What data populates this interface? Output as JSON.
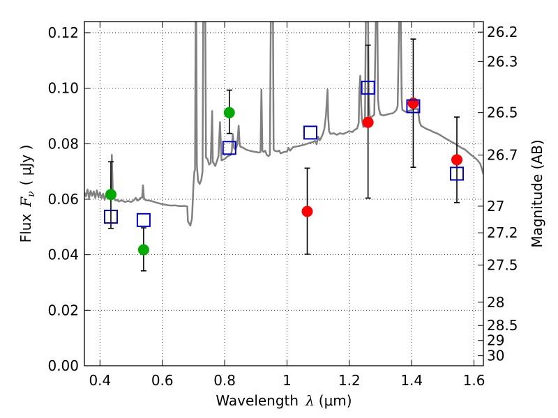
{
  "chart_data": {
    "type": "scatter",
    "title": "",
    "xlabel_prefix": "Wavelength",
    "xlabel_symbol": "λ",
    "xlabel_unit": "(μm)",
    "ylabel_prefix": "Flux",
    "ylabel_symbol": "F",
    "ylabel_subscript": "ν",
    "ylabel_unit": "( μJy )",
    "y2label": "Magnitude (AB)",
    "xlim": [
      0.35,
      1.63
    ],
    "ylim": [
      0.0,
      0.124
    ],
    "grid": true,
    "x_ticks": [
      {
        "value": 0.4,
        "label": "0.4"
      },
      {
        "value": 0.6,
        "label": "0.6"
      },
      {
        "value": 0.8,
        "label": "0.8"
      },
      {
        "value": 1.0,
        "label": "1"
      },
      {
        "value": 1.2,
        "label": "1.2"
      },
      {
        "value": 1.4,
        "label": "1.4"
      },
      {
        "value": 1.6,
        "label": "1.6"
      }
    ],
    "y_ticks": [
      {
        "value": 0.0,
        "label": "0.00"
      },
      {
        "value": 0.02,
        "label": "0.02"
      },
      {
        "value": 0.04,
        "label": "0.04"
      },
      {
        "value": 0.06,
        "label": "0.06"
      },
      {
        "value": 0.08,
        "label": "0.08"
      },
      {
        "value": 0.1,
        "label": "0.10"
      },
      {
        "value": 0.12,
        "label": "0.12"
      }
    ],
    "y2_ticks": [
      {
        "flux": 0.1202,
        "label": "26.2"
      },
      {
        "flux": 0.1096,
        "label": "26.3"
      },
      {
        "flux": 0.0912,
        "label": "26.5"
      },
      {
        "flux": 0.0759,
        "label": "26.7"
      },
      {
        "flux": 0.0575,
        "label": "27"
      },
      {
        "flux": 0.0479,
        "label": "27.2"
      },
      {
        "flux": 0.0363,
        "label": "27.5"
      },
      {
        "flux": 0.0229,
        "label": "28"
      },
      {
        "flux": 0.0145,
        "label": "28.5"
      },
      {
        "flux": 0.0091,
        "label": "29"
      },
      {
        "flux": 0.0036,
        "label": "30"
      }
    ],
    "series": [
      {
        "name": "model spectrum",
        "kind": "line",
        "color": "#808080",
        "points": [
          [
            0.35,
            0.0625
          ],
          [
            0.355,
            0.061
          ],
          [
            0.36,
            0.0635
          ],
          [
            0.365,
            0.0605
          ],
          [
            0.37,
            0.063
          ],
          [
            0.375,
            0.0612
          ],
          [
            0.38,
            0.0628
          ],
          [
            0.385,
            0.0605
          ],
          [
            0.39,
            0.0632
          ],
          [
            0.395,
            0.0608
          ],
          [
            0.4,
            0.0625
          ],
          [
            0.405,
            0.0603
          ],
          [
            0.41,
            0.062
          ],
          [
            0.415,
            0.0598
          ],
          [
            0.42,
            0.0618
          ],
          [
            0.425,
            0.0605
          ],
          [
            0.43,
            0.061
          ],
          [
            0.435,
            0.062
          ],
          [
            0.438,
            0.076
          ],
          [
            0.441,
            0.063
          ],
          [
            0.445,
            0.0605
          ],
          [
            0.45,
            0.0595
          ],
          [
            0.455,
            0.0598
          ],
          [
            0.46,
            0.0592
          ],
          [
            0.47,
            0.0596
          ],
          [
            0.48,
            0.059
          ],
          [
            0.49,
            0.0594
          ],
          [
            0.5,
            0.059
          ],
          [
            0.51,
            0.0598
          ],
          [
            0.515,
            0.0605
          ],
          [
            0.52,
            0.0595
          ],
          [
            0.525,
            0.0598
          ],
          [
            0.53,
            0.0605
          ],
          [
            0.535,
            0.0605
          ],
          [
            0.538,
            0.065
          ],
          [
            0.541,
            0.0605
          ],
          [
            0.545,
            0.0598
          ],
          [
            0.55,
            0.0596
          ],
          [
            0.56,
            0.0595
          ],
          [
            0.57,
            0.0592
          ],
          [
            0.58,
            0.0588
          ],
          [
            0.59,
            0.0585
          ],
          [
            0.6,
            0.0582
          ],
          [
            0.61,
            0.058
          ],
          [
            0.62,
            0.0578
          ],
          [
            0.63,
            0.0577
          ],
          [
            0.64,
            0.0578
          ],
          [
            0.65,
            0.0576
          ],
          [
            0.66,
            0.0575
          ],
          [
            0.67,
            0.0576
          ],
          [
            0.68,
            0.0574
          ],
          [
            0.682,
            0.052
          ],
          [
            0.69,
            0.0505
          ],
          [
            0.695,
            0.053
          ],
          [
            0.698,
            0.06
          ],
          [
            0.7,
            0.0655
          ],
          [
            0.703,
            0.07
          ],
          [
            0.705,
            0.0705
          ],
          [
            0.707,
            0.124
          ],
          [
            0.709,
            0.124
          ],
          [
            0.711,
            0.072
          ],
          [
            0.715,
            0.0665
          ],
          [
            0.72,
            0.0655
          ],
          [
            0.725,
            0.067
          ],
          [
            0.729,
            0.07
          ],
          [
            0.731,
            0.124
          ],
          [
            0.738,
            0.124
          ],
          [
            0.74,
            0.075
          ],
          [
            0.745,
            0.0745
          ],
          [
            0.75,
            0.0725
          ],
          [
            0.755,
            0.073
          ],
          [
            0.76,
            0.0918
          ],
          [
            0.762,
            0.0735
          ],
          [
            0.77,
            0.072
          ],
          [
            0.78,
            0.0755
          ],
          [
            0.785,
            0.0878
          ],
          [
            0.79,
            0.074
          ],
          [
            0.8,
            0.0745
          ],
          [
            0.81,
            0.0755
          ],
          [
            0.82,
            0.076
          ],
          [
            0.823,
            0.0775
          ],
          [
            0.826,
            0.0835
          ],
          [
            0.83,
            0.0785
          ],
          [
            0.835,
            0.078
          ],
          [
            0.84,
            0.0795
          ],
          [
            0.845,
            0.0865
          ],
          [
            0.848,
            0.08
          ],
          [
            0.85,
            0.079
          ],
          [
            0.86,
            0.0785
          ],
          [
            0.87,
            0.0778
          ],
          [
            0.88,
            0.0775
          ],
          [
            0.89,
            0.0772
          ],
          [
            0.9,
            0.077
          ],
          [
            0.91,
            0.0768
          ],
          [
            0.915,
            0.077
          ],
          [
            0.918,
            0.0995
          ],
          [
            0.921,
            0.0775
          ],
          [
            0.925,
            0.077
          ],
          [
            0.93,
            0.0775
          ],
          [
            0.935,
            0.076
          ],
          [
            0.94,
            0.0755
          ],
          [
            0.945,
            0.076
          ],
          [
            0.948,
            0.124
          ],
          [
            0.955,
            0.124
          ],
          [
            0.957,
            0.078
          ],
          [
            0.96,
            0.0775
          ],
          [
            0.97,
            0.0772
          ],
          [
            0.975,
            0.0775
          ],
          [
            0.98,
            0.0765
          ],
          [
            0.99,
            0.077
          ],
          [
            1.0,
            0.0772
          ],
          [
            1.005,
            0.0785
          ],
          [
            1.01,
            0.0775
          ],
          [
            1.02,
            0.0788
          ],
          [
            1.03,
            0.079
          ],
          [
            1.04,
            0.0792
          ],
          [
            1.05,
            0.0795
          ],
          [
            1.06,
            0.0798
          ],
          [
            1.07,
            0.0802
          ],
          [
            1.08,
            0.0805
          ],
          [
            1.09,
            0.081
          ],
          [
            1.095,
            0.0798
          ],
          [
            1.1,
            0.0825
          ],
          [
            1.105,
            0.0812
          ],
          [
            1.11,
            0.0822
          ],
          [
            1.115,
            0.0835
          ],
          [
            1.12,
            0.0855
          ],
          [
            1.125,
            0.0902
          ],
          [
            1.13,
            0.0995
          ],
          [
            1.132,
            0.09
          ],
          [
            1.135,
            0.0845
          ],
          [
            1.14,
            0.0835
          ],
          [
            1.15,
            0.0838
          ],
          [
            1.16,
            0.0832
          ],
          [
            1.17,
            0.0838
          ],
          [
            1.18,
            0.0835
          ],
          [
            1.19,
            0.084
          ],
          [
            1.2,
            0.0845
          ],
          [
            1.21,
            0.0842
          ],
          [
            1.215,
            0.0848
          ],
          [
            1.22,
            0.0852
          ],
          [
            1.225,
            0.0855
          ],
          [
            1.23,
            0.0875
          ],
          [
            1.232,
            0.098
          ],
          [
            1.235,
            0.1045
          ],
          [
            1.238,
            0.0945
          ],
          [
            1.24,
            0.089
          ],
          [
            1.245,
            0.086
          ],
          [
            1.25,
            0.0865
          ],
          [
            1.253,
            0.124
          ],
          [
            1.26,
            0.124
          ],
          [
            1.262,
            0.098
          ],
          [
            1.265,
            0.09
          ],
          [
            1.27,
            0.0895
          ],
          [
            1.28,
            0.0905
          ],
          [
            1.285,
            0.124
          ],
          [
            1.29,
            0.124
          ],
          [
            1.292,
            0.096
          ],
          [
            1.295,
            0.0925
          ],
          [
            1.3,
            0.0905
          ],
          [
            1.31,
            0.0902
          ],
          [
            1.32,
            0.0905
          ],
          [
            1.33,
            0.0908
          ],
          [
            1.34,
            0.091
          ],
          [
            1.35,
            0.092
          ],
          [
            1.355,
            0.0935
          ],
          [
            1.36,
            0.124
          ],
          [
            1.365,
            0.124
          ],
          [
            1.368,
            0.096
          ],
          [
            1.37,
            0.0922
          ],
          [
            1.38,
            0.0915
          ],
          [
            1.39,
            0.0918
          ],
          [
            1.4,
            0.0922
          ],
          [
            1.41,
            0.0925
          ],
          [
            1.42,
            0.0925
          ],
          [
            1.425,
            0.088
          ],
          [
            1.43,
            0.0865
          ],
          [
            1.44,
            0.0858
          ],
          [
            1.45,
            0.0852
          ],
          [
            1.46,
            0.0848
          ],
          [
            1.47,
            0.0842
          ],
          [
            1.48,
            0.0838
          ],
          [
            1.49,
            0.0832
          ],
          [
            1.5,
            0.0825
          ],
          [
            1.51,
            0.0818
          ],
          [
            1.52,
            0.0812
          ],
          [
            1.53,
            0.0805
          ],
          [
            1.54,
            0.08
          ],
          [
            1.55,
            0.0792
          ],
          [
            1.56,
            0.0785
          ],
          [
            1.57,
            0.078
          ],
          [
            1.58,
            0.077
          ],
          [
            1.59,
            0.076
          ],
          [
            1.6,
            0.0752
          ],
          [
            1.61,
            0.0742
          ],
          [
            1.62,
            0.0728
          ],
          [
            1.625,
            0.071
          ],
          [
            1.63,
            0.069
          ]
        ]
      },
      {
        "name": "observed (green)",
        "kind": "errorbar",
        "color": "#00aa00",
        "points": [
          {
            "x": 0.435,
            "y": 0.0617,
            "yerr_low": 0.0495,
            "yerr_high": 0.0735
          },
          {
            "x": 0.54,
            "y": 0.0418,
            "yerr_low": 0.0342,
            "yerr_high": 0.0497
          },
          {
            "x": 0.815,
            "y": 0.0912,
            "yerr_low": 0.0837,
            "yerr_high": 0.0993
          }
        ]
      },
      {
        "name": "observed (red)",
        "kind": "errorbar",
        "color": "#ff0000",
        "points": [
          {
            "x": 1.065,
            "y": 0.0556,
            "yerr_low": 0.0402,
            "yerr_high": 0.0712
          },
          {
            "x": 1.26,
            "y": 0.0877,
            "yerr_low": 0.0604,
            "yerr_high": 0.1155
          },
          {
            "x": 1.405,
            "y": 0.0946,
            "yerr_low": 0.0715,
            "yerr_high": 0.1177
          },
          {
            "x": 1.545,
            "y": 0.0742,
            "yerr_low": 0.0588,
            "yerr_high": 0.0896
          }
        ]
      },
      {
        "name": "model photometry",
        "kind": "open-square",
        "color": "#0000cc",
        "points": [
          {
            "x": 0.435,
            "y": 0.0537
          },
          {
            "x": 0.54,
            "y": 0.0525
          },
          {
            "x": 0.815,
            "y": 0.0785
          },
          {
            "x": 1.075,
            "y": 0.084
          },
          {
            "x": 1.26,
            "y": 0.1002
          },
          {
            "x": 1.405,
            "y": 0.0935
          },
          {
            "x": 1.545,
            "y": 0.0692
          }
        ]
      }
    ]
  }
}
